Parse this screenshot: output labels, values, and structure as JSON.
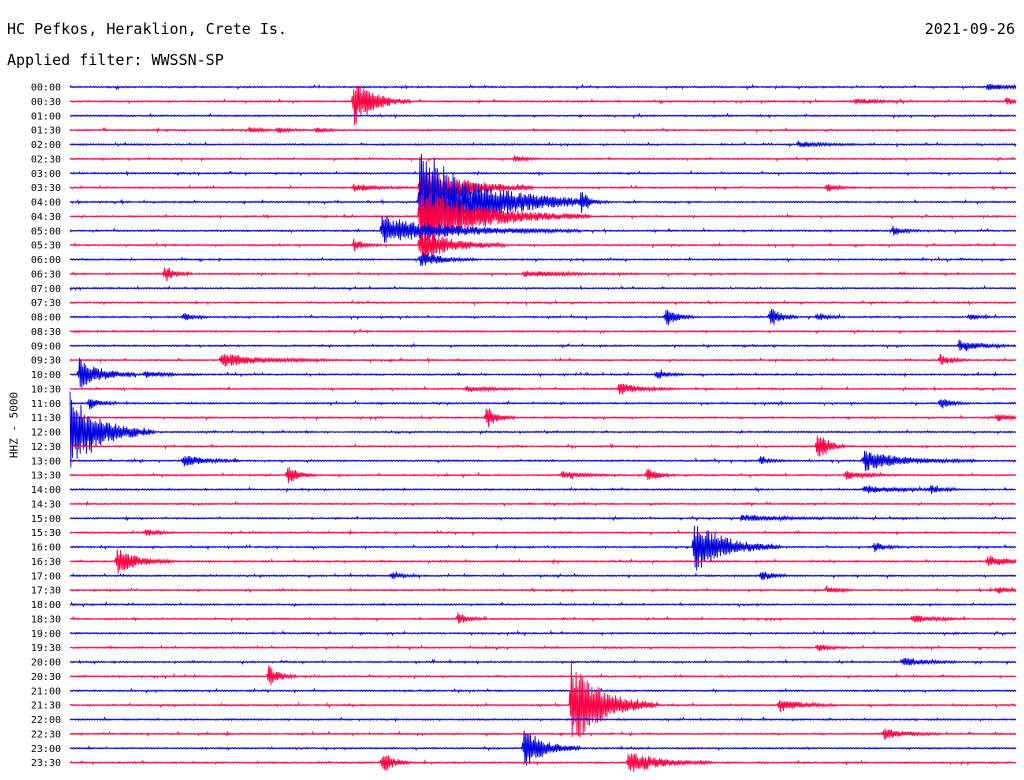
{
  "header": {
    "station": "HC Pefkos, Heraklion, Crete Is.",
    "date": "2021-09-26",
    "filter": "Applied filter: WWSSN-SP"
  },
  "chart_data": {
    "type": "line",
    "ylabel": "HHZ - 5000",
    "colors": [
      "#0000dd",
      "#ff0044"
    ],
    "rows": [
      "00:00",
      "00:30",
      "01:00",
      "01:30",
      "02:00",
      "02:30",
      "03:00",
      "03:30",
      "04:00",
      "04:30",
      "05:00",
      "05:30",
      "06:00",
      "06:30",
      "07:00",
      "07:30",
      "08:00",
      "08:30",
      "09:00",
      "09:30",
      "10:00",
      "10:30",
      "11:00",
      "11:30",
      "12:00",
      "12:30",
      "13:00",
      "13:30",
      "14:00",
      "14:30",
      "15:00",
      "15:30",
      "16:00",
      "16:30",
      "17:00",
      "17:30",
      "18:00",
      "18:30",
      "19:00",
      "19:30",
      "20:00",
      "20:30",
      "21:00",
      "21:30",
      "22:00",
      "22:30",
      "23:00",
      "23:30"
    ],
    "events": [
      {
        "row": 1,
        "t": 0.3,
        "amp": 26,
        "dur": 0.02
      },
      {
        "row": 1,
        "t": 0.83,
        "amp": 3,
        "dur": 0.02
      },
      {
        "row": 1,
        "t": 0.99,
        "amp": 4,
        "dur": 0.01
      },
      {
        "row": 0,
        "t": 0.97,
        "amp": 3,
        "dur": 0.02
      },
      {
        "row": 3,
        "t": 0.19,
        "amp": 3,
        "dur": 0.01
      },
      {
        "row": 3,
        "t": 0.22,
        "amp": 3,
        "dur": 0.01
      },
      {
        "row": 3,
        "t": 0.26,
        "amp": 3,
        "dur": 0.01
      },
      {
        "row": 4,
        "t": 0.77,
        "amp": 3,
        "dur": 0.02
      },
      {
        "row": 5,
        "t": 0.47,
        "amp": 3,
        "dur": 0.01
      },
      {
        "row": 7,
        "t": 0.3,
        "amp": 4,
        "dur": 0.02
      },
      {
        "row": 7,
        "t": 0.37,
        "amp": 24,
        "dur": 0.04
      },
      {
        "row": 7,
        "t": 0.8,
        "amp": 4,
        "dur": 0.01
      },
      {
        "row": 8,
        "t": 0.37,
        "amp": 55,
        "dur": 0.06
      },
      {
        "row": 8,
        "t": 0.54,
        "amp": 9,
        "dur": 0.01
      },
      {
        "row": 9,
        "t": 0.37,
        "amp": 30,
        "dur": 0.06
      },
      {
        "row": 10,
        "t": 0.33,
        "amp": 14,
        "dur": 0.07
      },
      {
        "row": 10,
        "t": 0.87,
        "amp": 5,
        "dur": 0.01
      },
      {
        "row": 11,
        "t": 0.3,
        "amp": 6,
        "dur": 0.01
      },
      {
        "row": 11,
        "t": 0.37,
        "amp": 18,
        "dur": 0.03
      },
      {
        "row": 12,
        "t": 0.37,
        "amp": 8,
        "dur": 0.02
      },
      {
        "row": 13,
        "t": 0.1,
        "amp": 9,
        "dur": 0.01
      },
      {
        "row": 13,
        "t": 0.48,
        "amp": 3,
        "dur": 0.04
      },
      {
        "row": 16,
        "t": 0.12,
        "amp": 4,
        "dur": 0.01
      },
      {
        "row": 16,
        "t": 0.63,
        "amp": 10,
        "dur": 0.01
      },
      {
        "row": 16,
        "t": 0.74,
        "amp": 11,
        "dur": 0.01
      },
      {
        "row": 16,
        "t": 0.79,
        "amp": 4,
        "dur": 0.01
      },
      {
        "row": 16,
        "t": 0.95,
        "amp": 3,
        "dur": 0.01
      },
      {
        "row": 18,
        "t": 0.94,
        "amp": 6,
        "dur": 0.02
      },
      {
        "row": 19,
        "t": 0.16,
        "amp": 7,
        "dur": 0.04
      },
      {
        "row": 19,
        "t": 0.92,
        "amp": 6,
        "dur": 0.01
      },
      {
        "row": 20,
        "t": 0.01,
        "amp": 18,
        "dur": 0.02
      },
      {
        "row": 20,
        "t": 0.08,
        "amp": 3,
        "dur": 0.02
      },
      {
        "row": 20,
        "t": 0.62,
        "amp": 5,
        "dur": 0.01
      },
      {
        "row": 21,
        "t": 0.58,
        "amp": 6,
        "dur": 0.02
      },
      {
        "row": 21,
        "t": 0.42,
        "amp": 3,
        "dur": 0.02
      },
      {
        "row": 22,
        "t": 0.02,
        "amp": 6,
        "dur": 0.01
      },
      {
        "row": 22,
        "t": 0.92,
        "amp": 6,
        "dur": 0.01
      },
      {
        "row": 23,
        "t": 0.44,
        "amp": 12,
        "dur": 0.01
      },
      {
        "row": 23,
        "t": 0.98,
        "amp": 5,
        "dur": 0.01
      },
      {
        "row": 24,
        "t": 0.0,
        "amp": 40,
        "dur": 0.03
      },
      {
        "row": 25,
        "t": 0.79,
        "amp": 18,
        "dur": 0.01
      },
      {
        "row": 26,
        "t": 0.12,
        "amp": 6,
        "dur": 0.02
      },
      {
        "row": 26,
        "t": 0.73,
        "amp": 4,
        "dur": 0.01
      },
      {
        "row": 26,
        "t": 0.84,
        "amp": 10,
        "dur": 0.04
      },
      {
        "row": 27,
        "t": 0.23,
        "amp": 10,
        "dur": 0.01
      },
      {
        "row": 27,
        "t": 0.52,
        "amp": 4,
        "dur": 0.02
      },
      {
        "row": 27,
        "t": 0.61,
        "amp": 8,
        "dur": 0.01
      },
      {
        "row": 27,
        "t": 0.82,
        "amp": 4,
        "dur": 0.02
      },
      {
        "row": 28,
        "t": 0.84,
        "amp": 4,
        "dur": 0.03
      },
      {
        "row": 28,
        "t": 0.91,
        "amp": 4,
        "dur": 0.01
      },
      {
        "row": 30,
        "t": 0.71,
        "amp": 3,
        "dur": 0.04
      },
      {
        "row": 31,
        "t": 0.08,
        "amp": 4,
        "dur": 0.01
      },
      {
        "row": 32,
        "t": 0.66,
        "amp": 28,
        "dur": 0.03
      },
      {
        "row": 32,
        "t": 0.85,
        "amp": 5,
        "dur": 0.01
      },
      {
        "row": 33,
        "t": 0.05,
        "amp": 14,
        "dur": 0.02
      },
      {
        "row": 33,
        "t": 0.97,
        "amp": 6,
        "dur": 0.02
      },
      {
        "row": 34,
        "t": 0.73,
        "amp": 6,
        "dur": 0.01
      },
      {
        "row": 34,
        "t": 0.34,
        "amp": 4,
        "dur": 0.01
      },
      {
        "row": 35,
        "t": 0.8,
        "amp": 4,
        "dur": 0.01
      },
      {
        "row": 35,
        "t": 0.98,
        "amp": 4,
        "dur": 0.01
      },
      {
        "row": 37,
        "t": 0.41,
        "amp": 6,
        "dur": 0.01
      },
      {
        "row": 37,
        "t": 0.89,
        "amp": 4,
        "dur": 0.02
      },
      {
        "row": 39,
        "t": 0.79,
        "amp": 4,
        "dur": 0.01
      },
      {
        "row": 40,
        "t": 0.88,
        "amp": 5,
        "dur": 0.02
      },
      {
        "row": 41,
        "t": 0.21,
        "amp": 12,
        "dur": 0.01
      },
      {
        "row": 43,
        "t": 0.53,
        "amp": 45,
        "dur": 0.03
      },
      {
        "row": 43,
        "t": 0.75,
        "amp": 7,
        "dur": 0.02
      },
      {
        "row": 45,
        "t": 0.86,
        "amp": 6,
        "dur": 0.02
      },
      {
        "row": 46,
        "t": 0.48,
        "amp": 22,
        "dur": 0.02
      },
      {
        "row": 47,
        "t": 0.33,
        "amp": 12,
        "dur": 0.01
      },
      {
        "row": 47,
        "t": 0.59,
        "amp": 12,
        "dur": 0.03
      }
    ]
  }
}
